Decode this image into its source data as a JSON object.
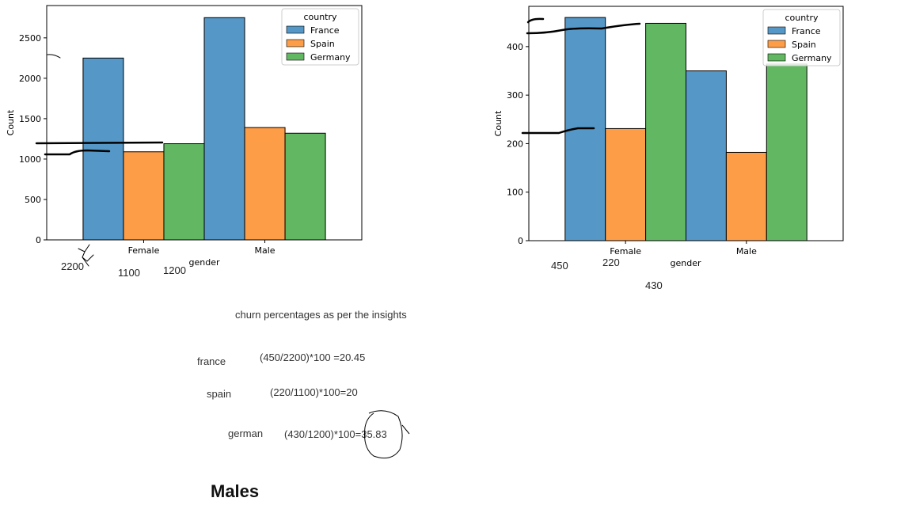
{
  "chart_data": [
    {
      "type": "bar",
      "categories": [
        "Female",
        "Male"
      ],
      "series": [
        {
          "name": "France",
          "values": [
            2250,
            2750
          ]
        },
        {
          "name": "Spain",
          "values": [
            1090,
            1390
          ]
        },
        {
          "name": "Germany",
          "values": [
            1190,
            1320
          ]
        }
      ],
      "xlabel": "gender",
      "ylabel": "Count",
      "ylim": [
        0,
        2900
      ],
      "yticks": [
        0,
        500,
        1000,
        1500,
        2000,
        2500
      ],
      "legend": {
        "title": "country",
        "placement": "top-right"
      },
      "colors": [
        "#5597c6",
        "#fd9d48",
        "#62b862"
      ]
    },
    {
      "type": "bar",
      "categories": [
        "Female",
        "Male"
      ],
      "series": [
        {
          "name": "France",
          "values": [
            460,
            350
          ]
        },
        {
          "name": "Spain",
          "values": [
            231,
            182
          ]
        },
        {
          "name": "Germany",
          "values": [
            448,
            364
          ]
        }
      ],
      "xlabel": "gender",
      "ylabel": "Count",
      "ylim": [
        0,
        483
      ],
      "yticks": [
        0,
        100,
        200,
        300,
        400
      ],
      "legend": {
        "title": "country",
        "placement": "top-right"
      },
      "colors": [
        "#5597c6",
        "#fd9d48",
        "#62b862"
      ]
    }
  ],
  "annotations": {
    "left_chart": [
      "2200",
      "1100",
      "1200"
    ],
    "right_chart": [
      "450",
      "220",
      "430"
    ]
  },
  "notes": {
    "heading": "churn percentages as per the insights",
    "rows": [
      {
        "label": "france",
        "formula": "(450/2200)*100 =20.45"
      },
      {
        "label": "spain",
        "formula": "(220/1100)*100=20"
      },
      {
        "label": "german",
        "formula": "(430/1200)*100=35.83"
      }
    ],
    "title": "Males"
  }
}
